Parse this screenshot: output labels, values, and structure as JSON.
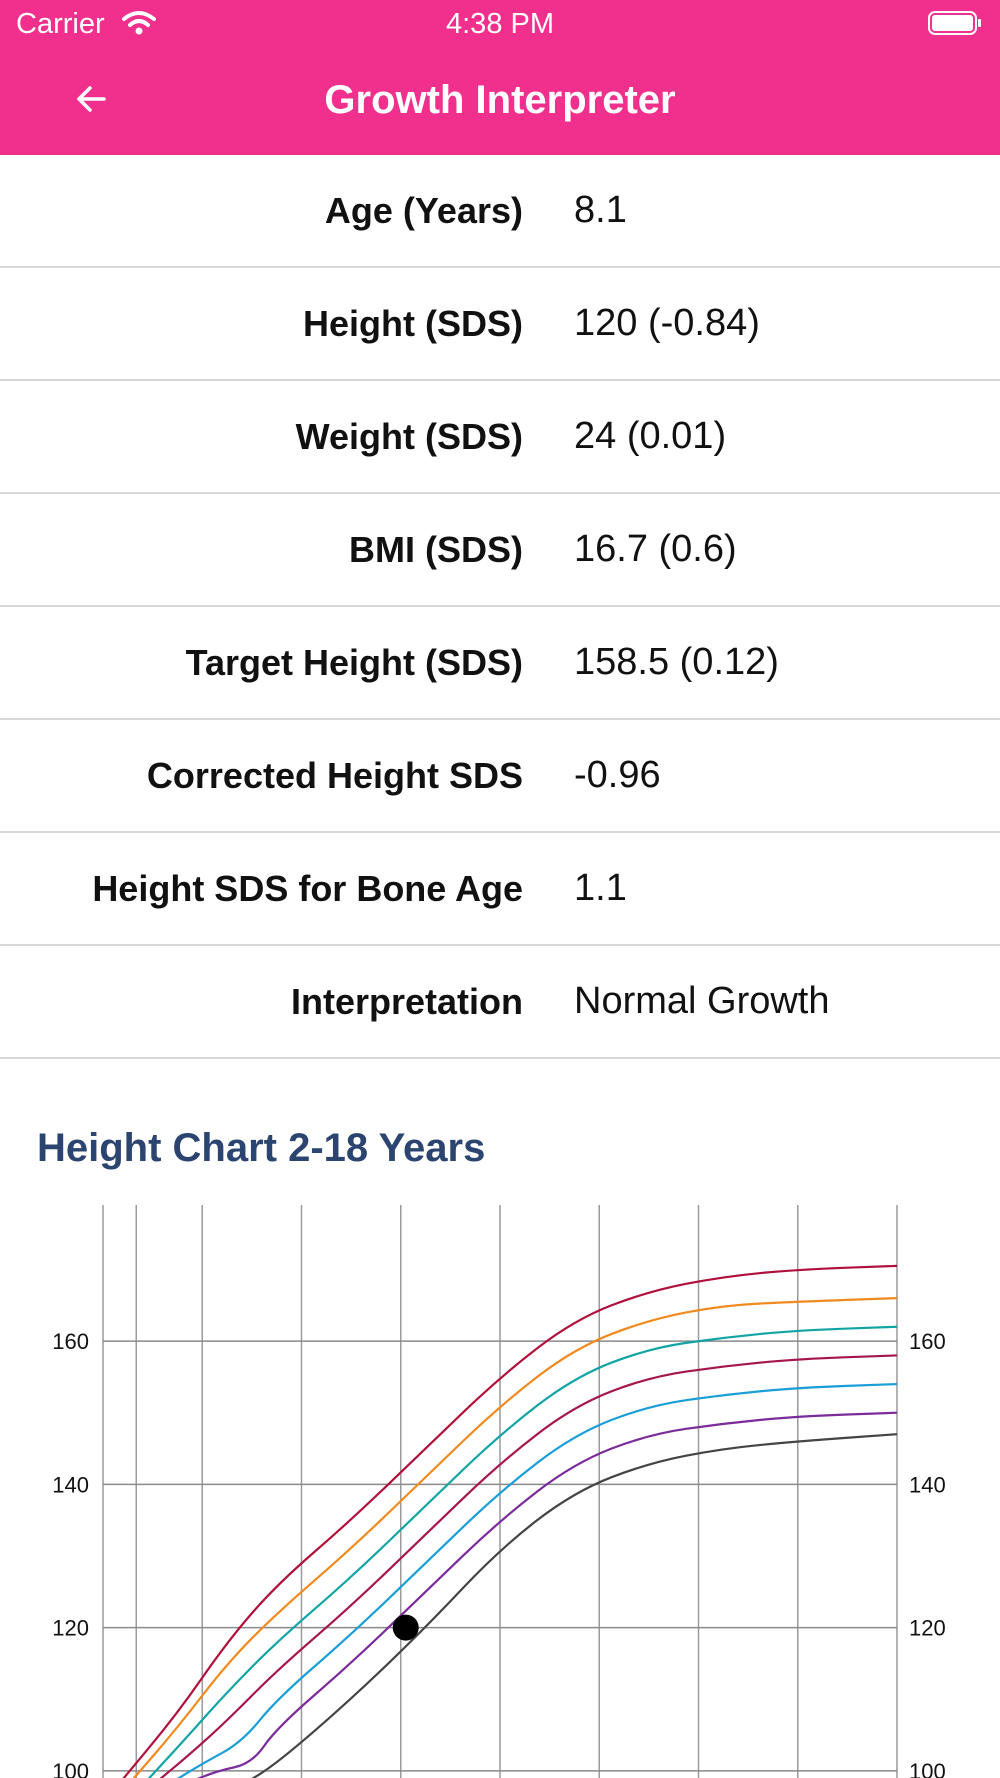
{
  "status_bar": {
    "carrier": "Carrier",
    "time": "4:38 PM"
  },
  "header": {
    "title": "Growth Interpreter"
  },
  "results": [
    {
      "label": "Age (Years)",
      "value": "8.1"
    },
    {
      "label": "Height (SDS)",
      "value": "120 (-0.84)"
    },
    {
      "label": "Weight (SDS)",
      "value": "24 (0.01)"
    },
    {
      "label": "BMI (SDS)",
      "value": "16.7 (0.6)"
    },
    {
      "label": "Target Height (SDS)",
      "value": "158.5 (0.12)"
    },
    {
      "label": "Corrected Height SDS",
      "value": "-0.96"
    },
    {
      "label": "Height SDS for Bone Age",
      "value": "1.1"
    },
    {
      "label": "Interpretation",
      "value": "Normal Growth"
    }
  ],
  "chart_title": "Height Chart 2-18 Years",
  "chart_data": {
    "type": "line",
    "x_range": [
      2,
      18
    ],
    "y_visible_range": [
      99,
      179
    ],
    "y_ticks": [
      100,
      120,
      140,
      160
    ],
    "grid": true,
    "series": [
      {
        "color": "#b0103c",
        "points": [
          [
            2.3,
            98
          ],
          [
            3.5,
            108
          ],
          [
            4.5,
            118
          ],
          [
            5.5,
            126
          ],
          [
            7,
            135
          ],
          [
            8.5,
            145
          ],
          [
            10,
            155
          ],
          [
            11.5,
            163
          ],
          [
            13,
            167
          ],
          [
            14.5,
            169
          ],
          [
            16,
            170
          ],
          [
            18,
            170.5
          ]
        ]
      },
      {
        "color": "#f08a1e",
        "points": [
          [
            2.5,
            98
          ],
          [
            3.5,
            106
          ],
          [
            4.5,
            115
          ],
          [
            5.5,
            122
          ],
          [
            7,
            131
          ],
          [
            8.5,
            141
          ],
          [
            10,
            151
          ],
          [
            11.5,
            159
          ],
          [
            13,
            163
          ],
          [
            14.5,
            165
          ],
          [
            16,
            165.5
          ],
          [
            18,
            166
          ]
        ]
      },
      {
        "color": "#12a4a4",
        "points": [
          [
            2.8,
            98
          ],
          [
            3.6,
            104
          ],
          [
            4.5,
            111
          ],
          [
            5.5,
            118
          ],
          [
            7,
            127
          ],
          [
            8.5,
            137
          ],
          [
            10,
            147
          ],
          [
            11.5,
            155
          ],
          [
            13,
            159
          ],
          [
            14.5,
            160.5
          ],
          [
            16,
            161.5
          ],
          [
            18,
            162
          ]
        ]
      },
      {
        "color": "#a5154e",
        "points": [
          [
            3.0,
            98
          ],
          [
            3.7,
            102
          ],
          [
            4.5,
            107
          ],
          [
            5.5,
            114
          ],
          [
            7,
            123
          ],
          [
            8.5,
            133
          ],
          [
            10,
            143
          ],
          [
            11.5,
            151
          ],
          [
            13,
            155
          ],
          [
            14.5,
            156.5
          ],
          [
            16,
            157.5
          ],
          [
            18,
            158
          ]
        ]
      },
      {
        "color": "#1a9ed8",
        "points": [
          [
            3.3,
            98
          ],
          [
            4.0,
            101
          ],
          [
            4.8,
            104
          ],
          [
            5.5,
            110
          ],
          [
            7,
            119
          ],
          [
            8.5,
            129
          ],
          [
            10,
            139
          ],
          [
            11.5,
            147
          ],
          [
            13,
            151
          ],
          [
            14.5,
            152.5
          ],
          [
            16,
            153.5
          ],
          [
            18,
            154
          ]
        ]
      },
      {
        "color": "#7b2b9a",
        "points": [
          [
            3.6,
            98
          ],
          [
            4.3,
            100
          ],
          [
            5.0,
            101
          ],
          [
            5.5,
            106
          ],
          [
            7,
            115
          ],
          [
            8.5,
            125
          ],
          [
            10,
            135
          ],
          [
            11.5,
            143
          ],
          [
            13,
            147
          ],
          [
            14.5,
            148.5
          ],
          [
            16,
            149.5
          ],
          [
            18,
            150
          ]
        ]
      },
      {
        "color": "#444444",
        "points": [
          [
            4.8,
            98
          ],
          [
            5.5,
            101
          ],
          [
            7,
            110
          ],
          [
            8.5,
            120
          ],
          [
            10,
            131
          ],
          [
            11.5,
            139
          ],
          [
            13,
            143
          ],
          [
            14.5,
            145
          ],
          [
            16,
            146
          ],
          [
            18,
            147
          ]
        ]
      }
    ],
    "patient_point": {
      "age": 8.1,
      "height": 120
    }
  }
}
